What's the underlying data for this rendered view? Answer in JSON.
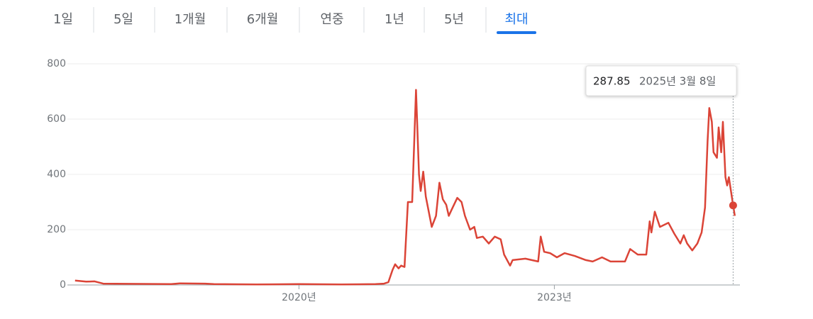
{
  "tabs": [
    "1일",
    "5일",
    "1개월",
    "6개월",
    "연중",
    "1년",
    "5년",
    "최대"
  ],
  "selected_tab": 7,
  "chart_data": {
    "type": "line",
    "x": [
      2017.37,
      2017.5,
      2017.6,
      2017.7,
      2018.0,
      2018.5,
      2018.6,
      2018.9,
      2019.0,
      2019.5,
      2020.0,
      2020.5,
      2020.9,
      2021.0,
      2021.05,
      2021.1,
      2021.13,
      2021.17,
      2021.2,
      2021.24,
      2021.28,
      2021.33,
      2021.375,
      2021.41,
      2021.43,
      2021.46,
      2021.49,
      2021.56,
      2021.61,
      2021.65,
      2021.69,
      2021.73,
      2021.76,
      2021.79,
      2021.86,
      2021.91,
      2021.95,
      2022.01,
      2022.06,
      2022.09,
      2022.16,
      2022.23,
      2022.3,
      2022.37,
      2022.41,
      2022.48,
      2022.51,
      2022.66,
      2022.81,
      2022.84,
      2022.88,
      2022.95,
      2023.03,
      2023.12,
      2023.24,
      2023.37,
      2023.45,
      2023.56,
      2023.66,
      2023.83,
      2023.89,
      2023.98,
      2024.08,
      2024.12,
      2024.14,
      2024.18,
      2024.24,
      2024.34,
      2024.41,
      2024.48,
      2024.52,
      2024.56,
      2024.62,
      2024.68,
      2024.73,
      2024.77,
      2024.8,
      2024.82,
      2024.85,
      2024.87,
      2024.91,
      2024.93,
      2024.96,
      2024.98,
      2025.01,
      2025.03,
      2025.05,
      2025.1,
      2025.12
    ],
    "series": [
      {
        "color": "#db4437",
        "values": [
          16,
          12,
          13,
          5,
          4,
          3,
          6,
          5,
          3,
          2,
          3,
          2,
          3,
          5,
          10,
          55,
          75,
          60,
          70,
          65,
          300,
          300,
          706,
          400,
          340,
          410,
          320,
          210,
          250,
          370,
          310,
          290,
          250,
          270,
          315,
          300,
          250,
          200,
          210,
          170,
          175,
          150,
          175,
          165,
          110,
          70,
          90,
          95,
          85,
          175,
          120,
          115,
          100,
          115,
          105,
          90,
          85,
          100,
          85,
          85,
          130,
          110,
          110,
          230,
          190,
          265,
          210,
          225,
          185,
          150,
          180,
          150,
          125,
          150,
          190,
          280,
          520,
          640,
          590,
          480,
          460,
          570,
          480,
          590,
          390,
          360,
          390,
          287.85,
          250
        ]
      }
    ],
    "xlim": [
      2017.28,
      2025.18
    ],
    "xticks": [
      {
        "value": 2020,
        "label": "2020년"
      },
      {
        "value": 2023,
        "label": "2023년"
      }
    ],
    "ylim": [
      0,
      800
    ],
    "yticks": [
      0,
      200,
      400,
      600,
      800
    ],
    "grid": true,
    "tooltip": {
      "x": 2025.1,
      "value": 287.85,
      "date": "2025년 3월 8일"
    }
  }
}
